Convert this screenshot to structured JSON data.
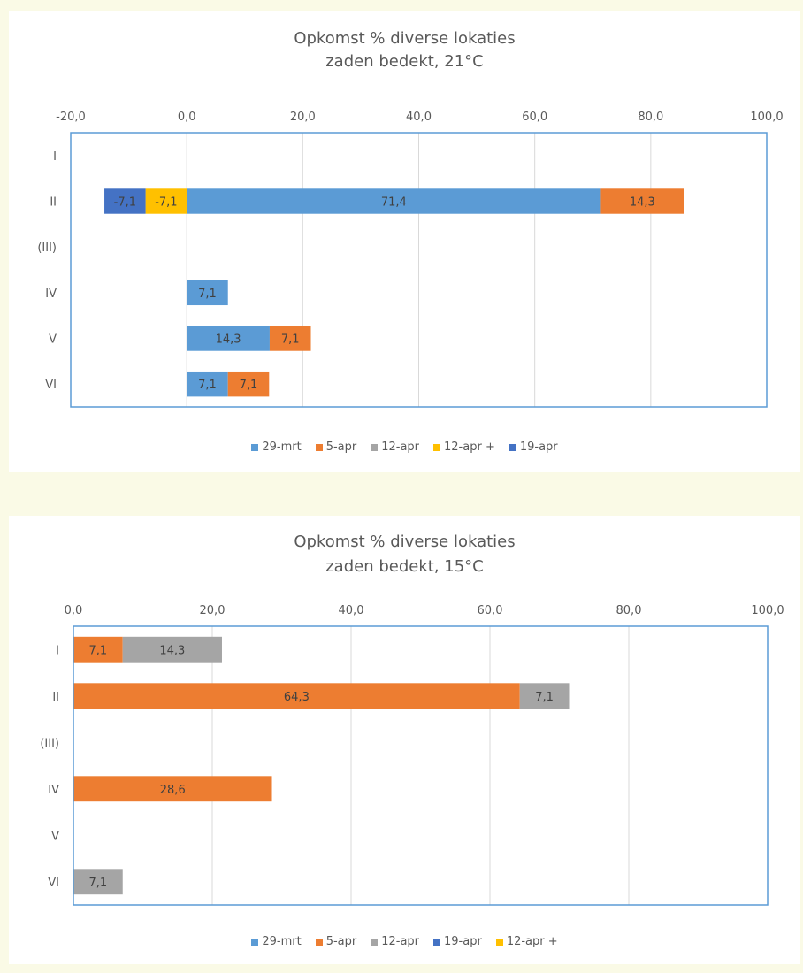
{
  "chart_data": [
    {
      "type": "bar",
      "orientation": "horizontal",
      "stacked": true,
      "title": "Opkomst % diverse lokaties",
      "subtitle": "zaden bedekt, 21°C",
      "categories": [
        "I",
        "II",
        "(III)",
        "IV",
        "V",
        "VI"
      ],
      "xlim": [
        -20,
        100
      ],
      "xticks": [
        "-20,0",
        "0,0",
        "20,0",
        "40,0",
        "60,0",
        "80,0",
        "100,0"
      ],
      "grid": true,
      "legend_position": "bottom",
      "legend": [
        "29-mrt",
        "5-apr",
        "12-apr",
        "12-apr +",
        "19-apr"
      ],
      "series": [
        {
          "name": "29-mrt",
          "color": "#5b9bd5",
          "values": [
            null,
            71.4,
            null,
            7.1,
            14.3,
            7.1
          ],
          "labels": [
            null,
            "71,4",
            null,
            "7,1",
            "14,3",
            "7,1"
          ]
        },
        {
          "name": "5-apr",
          "color": "#ed7d31",
          "values": [
            null,
            14.3,
            null,
            null,
            7.1,
            7.1
          ],
          "labels": [
            null,
            "14,3",
            null,
            null,
            "7,1",
            "7,1"
          ]
        },
        {
          "name": "12-apr",
          "color": "#a5a5a5",
          "values": [
            null,
            null,
            null,
            null,
            null,
            null
          ],
          "labels": [
            null,
            null,
            null,
            null,
            null,
            null
          ]
        },
        {
          "name": "12-apr +",
          "color": "#ffc000",
          "values": [
            null,
            -7.1,
            null,
            null,
            null,
            null
          ],
          "labels": [
            null,
            "-7,1",
            null,
            null,
            null,
            null
          ]
        },
        {
          "name": "19-apr",
          "color": "#4472c4",
          "values": [
            null,
            -7.1,
            null,
            null,
            null,
            null
          ],
          "labels": [
            null,
            "-7,1",
            null,
            null,
            null,
            null
          ]
        }
      ]
    },
    {
      "type": "bar",
      "orientation": "horizontal",
      "stacked": true,
      "title": "Opkomst % diverse lokaties",
      "subtitle": "zaden bedekt, 15°C",
      "categories": [
        "I",
        "II",
        "(III)",
        "IV",
        "V",
        "VI"
      ],
      "xlim": [
        0,
        100
      ],
      "xticks": [
        "0,0",
        "20,0",
        "40,0",
        "60,0",
        "80,0",
        "100,0"
      ],
      "grid": true,
      "legend_position": "bottom",
      "legend": [
        "29-mrt",
        "5-apr",
        "12-apr",
        "19-apr",
        "12-apr +"
      ],
      "series": [
        {
          "name": "29-mrt",
          "color": "#5b9bd5",
          "values": [
            null,
            null,
            null,
            null,
            null,
            null
          ],
          "labels": [
            null,
            null,
            null,
            null,
            null,
            null
          ]
        },
        {
          "name": "5-apr",
          "color": "#ed7d31",
          "values": [
            7.1,
            64.3,
            null,
            28.6,
            null,
            null
          ],
          "labels": [
            "7,1",
            "64,3",
            null,
            "28,6",
            null,
            null
          ]
        },
        {
          "name": "12-apr",
          "color": "#a5a5a5",
          "values": [
            14.3,
            7.1,
            null,
            null,
            null,
            7.1
          ],
          "labels": [
            "14,3",
            "7,1",
            null,
            null,
            null,
            "7,1"
          ]
        },
        {
          "name": "19-apr",
          "color": "#4472c4",
          "values": [
            null,
            null,
            null,
            null,
            null,
            null
          ],
          "labels": [
            null,
            null,
            null,
            null,
            null,
            null
          ]
        },
        {
          "name": "12-apr +",
          "color": "#ffc000",
          "values": [
            null,
            null,
            null,
            null,
            null,
            null
          ],
          "labels": [
            null,
            null,
            null,
            null,
            null,
            null
          ]
        }
      ]
    }
  ]
}
